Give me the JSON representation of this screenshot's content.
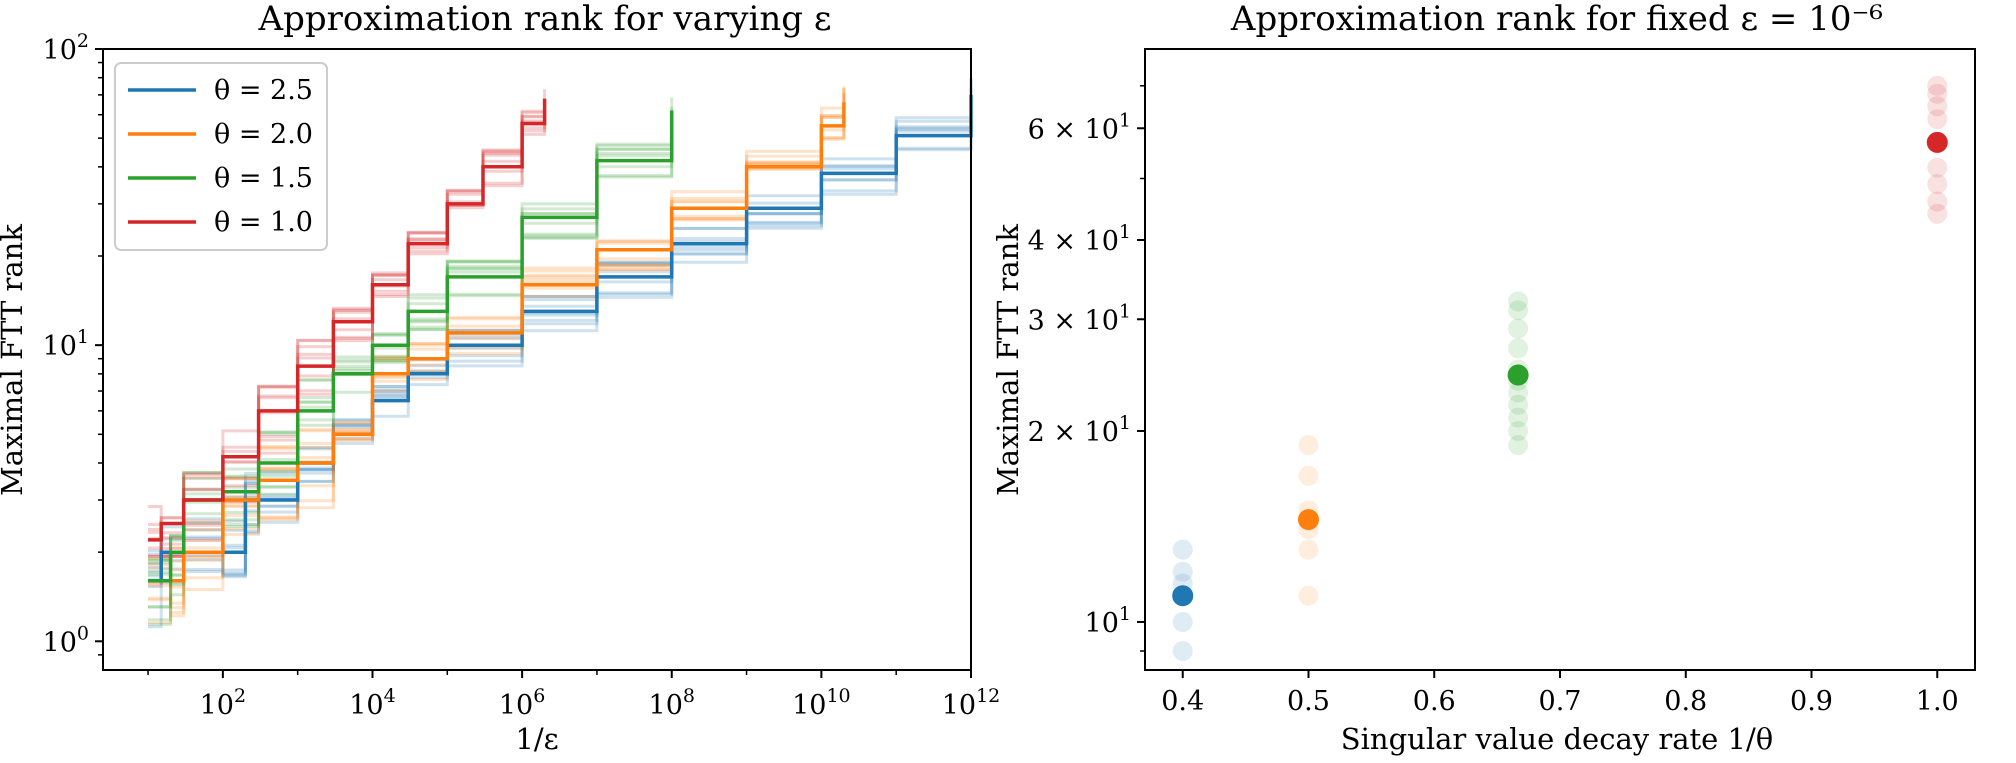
{
  "colors": {
    "theta_2_5": "#1f77b4",
    "theta_2_0": "#ff7f0e",
    "theta_1_5": "#2ca02c",
    "theta_1_0": "#d62728"
  },
  "chart_data": [
    {
      "type": "line",
      "title": "Approximation rank for varying ε",
      "xlabel": "1/ε",
      "ylabel": "Maximal FTT rank",
      "xscale": "log",
      "yscale": "log",
      "xlim": [
        2.5,
        1000000000000.0
      ],
      "ylim": [
        0.8,
        100
      ],
      "xticks": [
        {
          "value": 100,
          "base": "10",
          "exp": "2"
        },
        {
          "value": 10000,
          "base": "10",
          "exp": "4"
        },
        {
          "value": 1000000,
          "base": "10",
          "exp": "6"
        },
        {
          "value": 100000000,
          "base": "10",
          "exp": "8"
        },
        {
          "value": 10000000000,
          "base": "10",
          "exp": "10"
        },
        {
          "value": 1000000000000,
          "base": "10",
          "exp": "12"
        }
      ],
      "yticks": [
        {
          "value": 1,
          "base": "10",
          "exp": "0"
        },
        {
          "value": 10,
          "base": "10",
          "exp": "1"
        },
        {
          "value": 100,
          "base": "10",
          "exp": "2"
        }
      ],
      "legend_position": "top-left",
      "legend": [
        "θ = 2.5",
        "θ = 2.0",
        "θ = 1.5",
        "θ = 1.0"
      ],
      "grid": false,
      "series": [
        {
          "name": "θ = 2.5",
          "color": "#1f77b4",
          "x": [
            10,
            15,
            30,
            100,
            200,
            300,
            1000,
            3000,
            10000,
            30000,
            100000,
            1000000,
            10000000,
            100000000,
            1000000000,
            10000000000,
            100000000000,
            1000000000000
          ],
          "y": [
            1.6,
            2,
            2,
            2,
            3,
            3,
            4,
            5,
            6.5,
            8,
            10,
            13,
            17,
            22,
            29,
            38,
            51,
            70
          ]
        },
        {
          "name": "θ = 2.0",
          "color": "#ff7f0e",
          "x": [
            10,
            20,
            30,
            100,
            300,
            1000,
            3000,
            10000,
            30000,
            100000,
            1000000,
            10000000,
            100000000,
            1000000000,
            10000000000,
            20000000000
          ],
          "y": [
            1.6,
            1.6,
            2,
            3,
            3.5,
            4,
            5,
            8,
            9,
            11,
            16,
            21,
            29,
            40,
            55,
            66
          ]
        },
        {
          "name": "θ = 1.5",
          "color": "#2ca02c",
          "x": [
            10,
            20,
            30,
            100,
            300,
            1000,
            3000,
            10000,
            30000,
            100000,
            1000000,
            10000000,
            100000000
          ],
          "y": [
            1.6,
            2,
            3,
            3.2,
            4,
            6,
            8,
            10,
            13,
            17,
            27,
            42,
            62
          ]
        },
        {
          "name": "θ = 1.0",
          "color": "#d62728",
          "x": [
            10,
            15,
            30,
            100,
            300,
            1000,
            3000,
            10000,
            30000,
            100000,
            300000,
            1000000,
            2000000
          ],
          "y": [
            2.2,
            2.5,
            3,
            4.2,
            6,
            8.5,
            12,
            16,
            22,
            30,
            40,
            56,
            68
          ]
        }
      ]
    },
    {
      "type": "scatter",
      "title": "Approximation rank for fixed ε = 10⁻⁶",
      "xlabel": "Singular value decay rate 1/θ",
      "ylabel": "Maximal FTT rank",
      "xscale": "linear",
      "yscale": "log",
      "xlim": [
        0.37,
        1.03
      ],
      "ylim": [
        8.4,
        80
      ],
      "xticks": [
        "0.4",
        "0.5",
        "0.6",
        "0.7",
        "0.8",
        "0.9",
        "1.0"
      ],
      "yticks": [
        {
          "value": 10,
          "base": "10",
          "exp": "1",
          "mult": ""
        },
        {
          "value": 20,
          "base": "10",
          "exp": "1",
          "mult": "2 × "
        },
        {
          "value": 30,
          "base": "10",
          "exp": "1",
          "mult": "3 × "
        },
        {
          "value": 40,
          "base": "10",
          "exp": "1",
          "mult": "4 × "
        },
        {
          "value": 60,
          "base": "10",
          "exp": "1",
          "mult": "6 × "
        }
      ],
      "grid": false,
      "series": [
        {
          "x": 0.4,
          "color": "#1f77b4",
          "mean": 11,
          "runs": [
            9,
            10,
            11,
            11.5,
            12,
            13
          ]
        },
        {
          "x": 0.5,
          "color": "#ff7f0e",
          "mean": 14.5,
          "runs": [
            11,
            13,
            14,
            15,
            17,
            19
          ]
        },
        {
          "x": 0.6667,
          "color": "#2ca02c",
          "mean": 24.5,
          "runs": [
            19,
            20,
            21,
            22,
            23,
            24,
            25,
            27,
            29,
            31,
            32
          ]
        },
        {
          "x": 1.0,
          "color": "#d62728",
          "mean": 57,
          "runs": [
            44,
            46,
            49,
            52,
            57,
            62,
            65,
            68,
            70
          ]
        }
      ]
    }
  ]
}
